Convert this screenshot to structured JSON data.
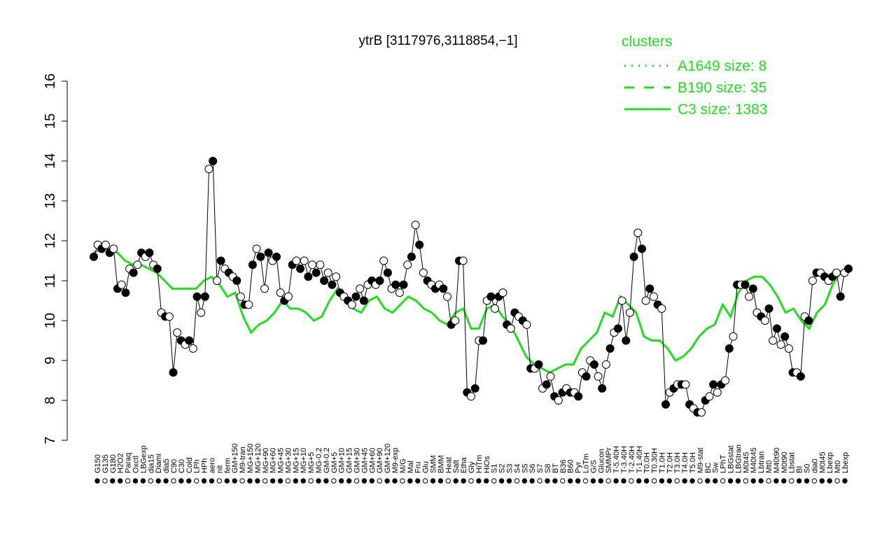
{
  "chart_data": {
    "type": "line",
    "title": "ytrB [3117976,3118854,−1]",
    "xlabel": "",
    "ylabel": "",
    "ylim": [
      7,
      16
    ],
    "yticks": [
      7,
      8,
      9,
      10,
      11,
      12,
      13,
      14,
      15,
      16
    ],
    "grid": false,
    "legend_position": "top-right",
    "legend": {
      "title": "clusters",
      "color": "#22dd22",
      "entries": [
        {
          "label": "A1649 size: 8",
          "style": "dotted"
        },
        {
          "label": "B190 size: 35",
          "style": "dashed"
        },
        {
          "label": "C3 size: 1383",
          "style": "solid"
        }
      ]
    },
    "x_tick_labels": [
      "G150",
      "G135",
      "G180",
      "H2O2",
      "Paraq",
      "Oxctl",
      "LBGexp",
      "dia15",
      "Diami",
      "dia5",
      "C90",
      "C30",
      "Cold",
      "LPh",
      "HPh",
      "aero",
      "nit",
      "ferm",
      "GM+150",
      "M9-tran",
      "MG+150",
      "MG+120",
      "MG+90",
      "MG+60",
      "MG+45",
      "MG+30",
      "MG+15",
      "MG+10",
      "MG+5",
      "MG-0.2",
      "GM-0.2",
      "GM+5",
      "GM+10",
      "GM+15",
      "GM+30",
      "GM+45",
      "GM+60",
      "GM+90",
      "GM+120",
      "M9-exp",
      "M/G",
      "Mal",
      "Fru",
      "Glu",
      "SMM",
      "BMM",
      "Heat",
      "Salt",
      "Etha",
      "Gly",
      "HiTm",
      "HiOs",
      "S1",
      "S2",
      "S3",
      "S4",
      "S5",
      "S6",
      "S7",
      "S8",
      "BT",
      "B36",
      "B60",
      "Pyr",
      "LoTm",
      "G/S",
      "Glucon",
      "SMMPr",
      "T-5.40H",
      "T-3.40H",
      "T-2.40H",
      "T-1.40H",
      "T0.0H",
      "T0.30H",
      "T1.0H",
      "T2.0H",
      "T3.0H",
      "T4.0H",
      "T5.0H",
      "M9-stat",
      "BC",
      "Sw",
      "LPhT",
      "LBGstat",
      "LBGtran",
      "M0t45",
      "M40t45",
      "Lbtran",
      "Mt0",
      "M40t90",
      "M0t90",
      "Lbstat",
      "BI",
      "S0",
      "dia0",
      "M0t45",
      "Lbexp",
      "Mt0",
      "Lbexp"
    ],
    "series": [
      {
        "name": "",
        "style": "points",
        "values": [
          11.6,
          11.9,
          11.8,
          11.9,
          11.7,
          11.8,
          10.8,
          10.9,
          10.7,
          11.3,
          11.2,
          11.4,
          11.7,
          11.6,
          11.7,
          11.4,
          11.3,
          10.2,
          10.1,
          10.1,
          8.7,
          9.7,
          9.5,
          9.4,
          9.5,
          9.3,
          10.6,
          10.2,
          10.6,
          13.8,
          14.0,
          11.0,
          11.5,
          11.3,
          11.2,
          11.1,
          11.0,
          10.6,
          10.4,
          10.4,
          11.4,
          11.8,
          11.6,
          10.8,
          11.7,
          11.5,
          11.6,
          10.7,
          10.5,
          10.6,
          11.4,
          11.5,
          11.3,
          11.5,
          11.1,
          11.4,
          11.2,
          11.4,
          11.0,
          11.2,
          10.9,
          11.1,
          10.7,
          10.6,
          10.5,
          10.4,
          10.6,
          10.8,
          10.5,
          10.9,
          11.0,
          10.9,
          11.0,
          11.5,
          11.2,
          10.8,
          10.9,
          10.7,
          10.9,
          11.4,
          11.6,
          12.4,
          11.9,
          11.2,
          11.0,
          10.9,
          10.8,
          10.9,
          10.8,
          10.6,
          9.9,
          10.0,
          11.5,
          11.5,
          8.2,
          8.1,
          8.3,
          9.5,
          9.5,
          10.5,
          10.6,
          10.3,
          10.6,
          10.7,
          9.9,
          9.8,
          10.2,
          10.1,
          10.0,
          9.9,
          8.8,
          8.8,
          8.9,
          8.3,
          8.4,
          8.6,
          8.1,
          8.0,
          8.2,
          8.3,
          8.2,
          8.2,
          8.1,
          8.7,
          8.6,
          9.0,
          8.9,
          8.6,
          8.3,
          8.9,
          9.3,
          9.7,
          9.8,
          10.5,
          9.5,
          10.2,
          11.6,
          12.2,
          11.8,
          10.5,
          10.8,
          10.6,
          10.4,
          10.3,
          7.9,
          8.2,
          8.3,
          8.4,
          8.4,
          8.4,
          7.9,
          7.8,
          7.7,
          7.7,
          8.0,
          8.1,
          8.4,
          8.2,
          8.4,
          8.5,
          9.3,
          9.6,
          10.9,
          10.9,
          10.9,
          10.6,
          10.8,
          10.2,
          10.1,
          10.0,
          10.3,
          9.5,
          9.8,
          9.4,
          9.6,
          9.3,
          8.7,
          8.7,
          8.6,
          10.1,
          10.0,
          11.0,
          11.2,
          11.2,
          11.1,
          11.0,
          11.1,
          11.2,
          10.6,
          11.2,
          11.3
        ]
      },
      {
        "name": "C3 size: 1383",
        "style": "solid",
        "values": [
          11.7,
          11.8,
          11.8,
          11.7,
          11.5,
          11.4,
          11.4,
          11.3,
          11.2,
          11.0,
          10.8,
          10.8,
          10.8,
          10.8,
          11.0,
          11.1,
          10.9,
          10.6,
          10.7,
          10.1,
          9.7,
          9.9,
          10.0,
          10.2,
          10.5,
          10.3,
          10.3,
          10.2,
          10.0,
          10.1,
          10.5,
          10.8,
          10.5,
          10.3,
          10.2,
          10.5,
          10.6,
          10.3,
          10.2,
          10.4,
          10.6,
          10.5,
          10.3,
          10.2,
          10.0,
          9.9,
          10.2,
          10.3,
          9.8,
          9.8,
          10.3,
          10.4,
          10.1,
          9.9,
          9.5,
          9.1,
          8.9,
          8.8,
          8.7,
          8.8,
          8.9,
          8.9,
          9.3,
          9.5,
          9.7,
          10.2,
          10.1,
          10.6,
          10.4,
          10.2,
          9.6,
          9.5,
          9.5,
          9.3,
          9.0,
          9.1,
          9.3,
          9.6,
          9.8,
          9.9,
          10.4,
          10.1,
          10.7,
          11.0,
          11.1,
          11.1,
          10.9,
          10.6,
          10.2,
          10.3,
          10.0,
          9.8,
          10.2,
          10.4,
          10.9,
          11.2,
          11.3
        ]
      }
    ]
  }
}
